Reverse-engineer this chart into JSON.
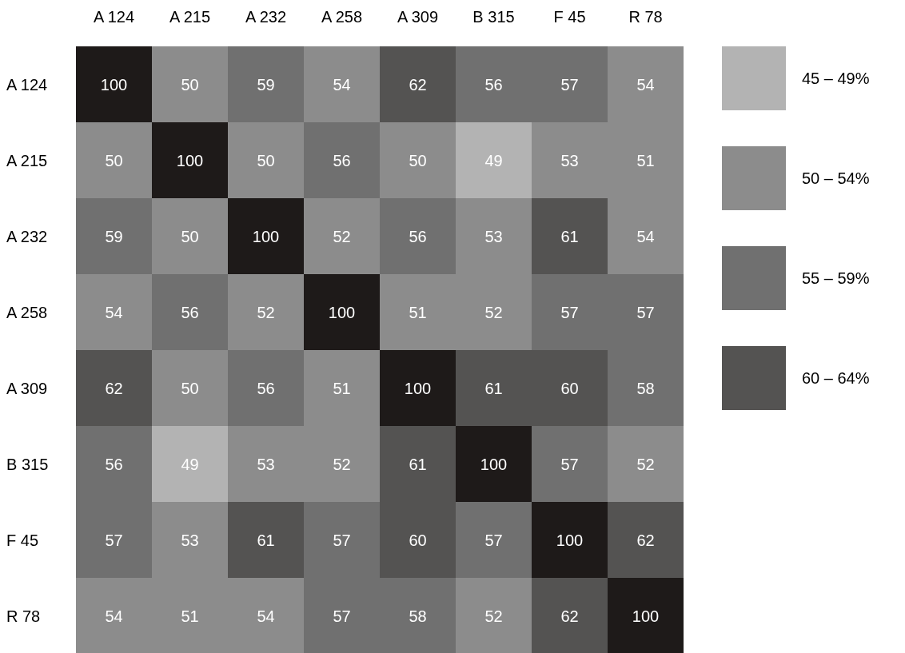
{
  "chart_data": {
    "type": "heatmap",
    "categories": [
      "A 124",
      "A 215",
      "A 232",
      "A 258",
      "A 309",
      "B 315",
      "F 45",
      "R 78"
    ],
    "y_categories": [
      "A 124",
      "A 215",
      "A 232",
      "A 258",
      "A 309",
      "B 315",
      "F 45",
      "R 78"
    ],
    "cells": [
      [
        100,
        50,
        59,
        54,
        62,
        56,
        57,
        54
      ],
      [
        50,
        100,
        50,
        56,
        50,
        49,
        53,
        51
      ],
      [
        59,
        50,
        100,
        52,
        56,
        53,
        61,
        54
      ],
      [
        54,
        56,
        52,
        100,
        51,
        52,
        57,
        57
      ],
      [
        62,
        50,
        56,
        51,
        100,
        61,
        60,
        58
      ],
      [
        56,
        49,
        53,
        52,
        61,
        100,
        57,
        52
      ],
      [
        57,
        53,
        61,
        57,
        60,
        57,
        100,
        62
      ],
      [
        54,
        51,
        54,
        57,
        58,
        52,
        62,
        100
      ]
    ],
    "colors": [
      "#1e1a19",
      "#8c8c8c",
      "#707070",
      "#8c8c8c",
      "#545352",
      "#707070",
      "#707070",
      "#8c8c8c",
      "#8c8c8c",
      "#1e1a19",
      "#8c8c8c",
      "#707070",
      "#8c8c8c",
      "#b3b3b3",
      "#8c8c8c",
      "#8c8c8c",
      "#707070",
      "#8c8c8c",
      "#1e1a19",
      "#8c8c8c",
      "#707070",
      "#8c8c8c",
      "#545352",
      "#8c8c8c",
      "#8c8c8c",
      "#707070",
      "#8c8c8c",
      "#1e1a19",
      "#8c8c8c",
      "#8c8c8c",
      "#707070",
      "#707070",
      "#545352",
      "#8c8c8c",
      "#707070",
      "#8c8c8c",
      "#1e1a19",
      "#545352",
      "#545352",
      "#707070",
      "#707070",
      "#b3b3b3",
      "#8c8c8c",
      "#8c8c8c",
      "#545352",
      "#1e1a19",
      "#707070",
      "#8c8c8c",
      "#707070",
      "#8c8c8c",
      "#545352",
      "#707070",
      "#545352",
      "#707070",
      "#1e1a19",
      "#545352",
      "#8c8c8c",
      "#8c8c8c",
      "#8c8c8c",
      "#707070",
      "#707070",
      "#8c8c8c",
      "#545352",
      "#1e1a19"
    ],
    "annotations": [
      "45 – 49%",
      "50 – 54%",
      "55 – 59%",
      "60 – 64%"
    ],
    "data_labels": true
  }
}
